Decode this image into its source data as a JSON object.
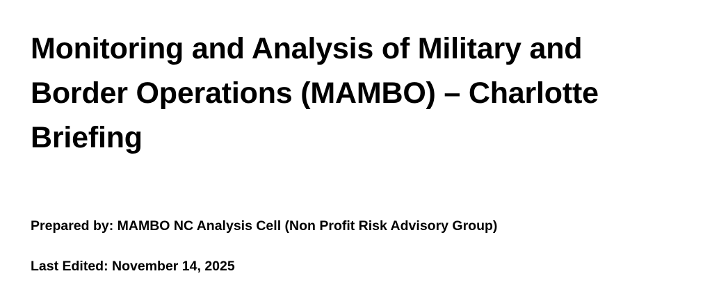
{
  "document": {
    "title": "Monitoring and Analysis of Military and Border Operations (MAMBO) – Charlotte Briefing",
    "prepared_by": "Prepared by: MAMBO NC Analysis Cell (Non Profit Risk Advisory Group)",
    "last_edited": "Last Edited: November 14, 2025"
  }
}
